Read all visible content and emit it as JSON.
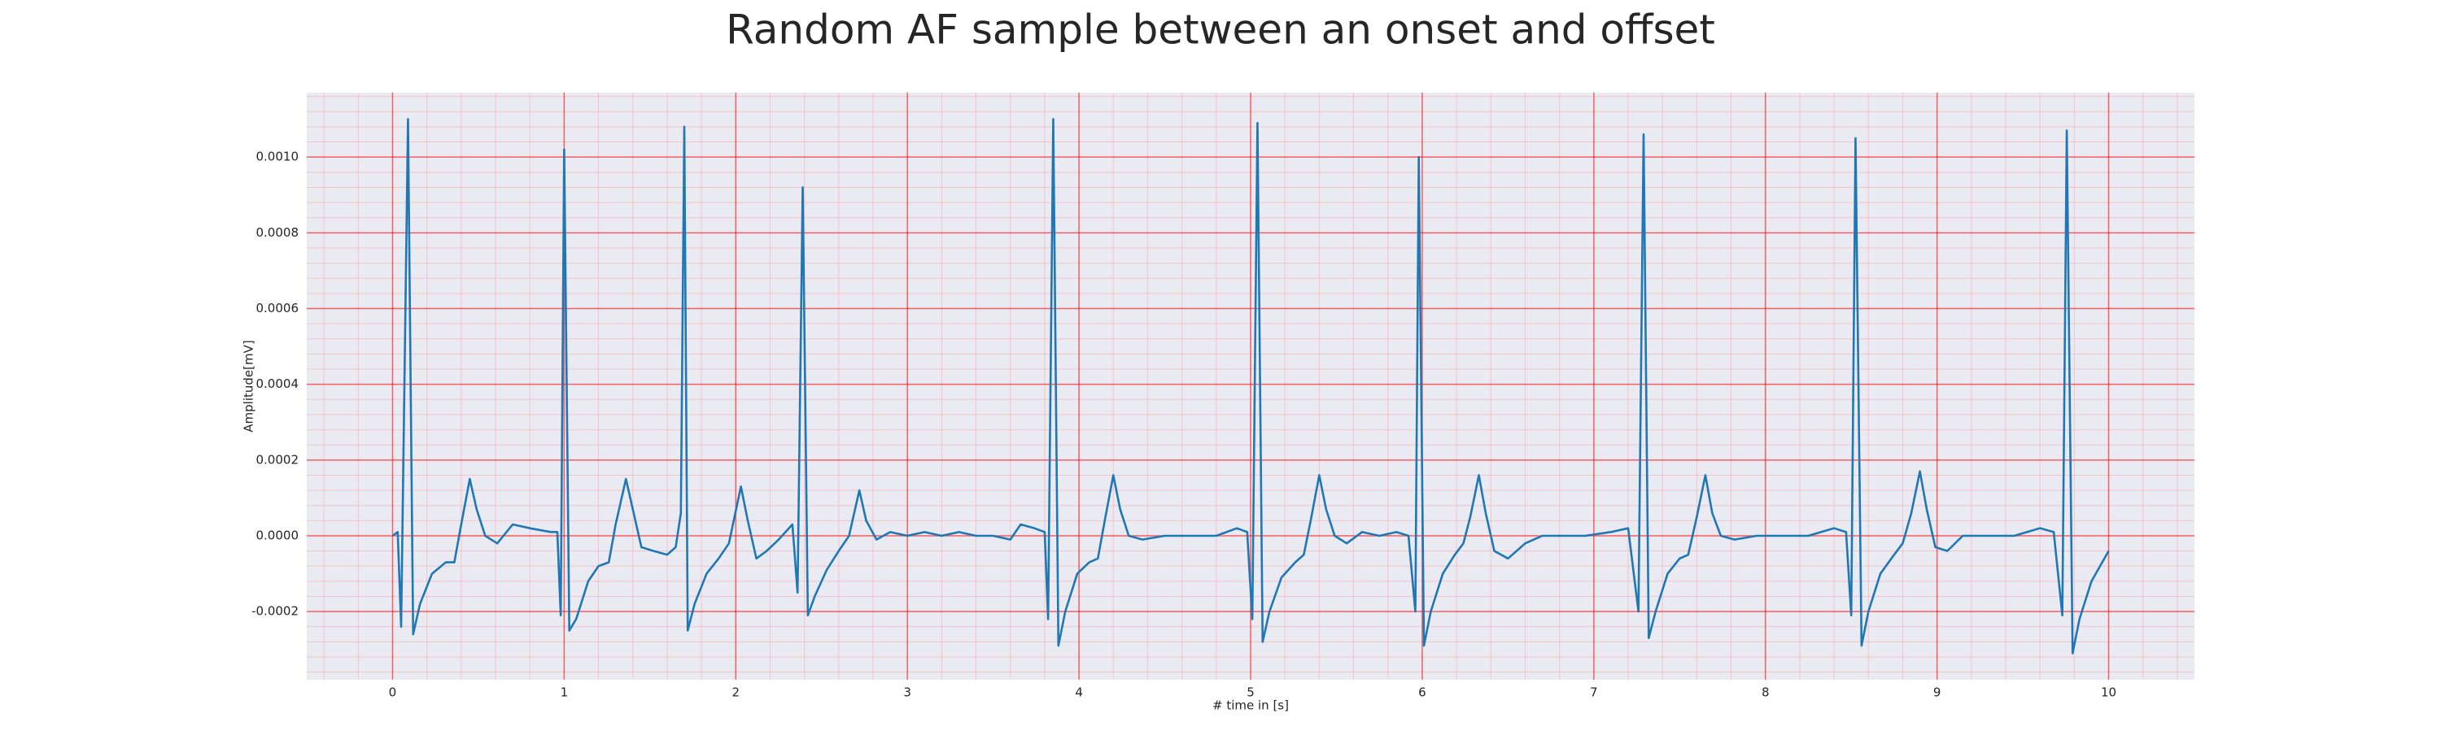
{
  "chart_data": {
    "type": "line",
    "title": "Random AF sample between an onset and offset",
    "xlabel": "# time in [s]",
    "ylabel": "Amplitude[mV]",
    "x": [
      0,
      0.03,
      0.05,
      0.09,
      0.12,
      0.16,
      0.23,
      0.31,
      0.36,
      0.4,
      0.45,
      0.49,
      0.54,
      0.61,
      0.7,
      0.8,
      0.92,
      0.96,
      0.98,
      1.0,
      1.03,
      1.07,
      1.14,
      1.2,
      1.26,
      1.3,
      1.36,
      1.4,
      1.45,
      1.52,
      1.6,
      1.65,
      1.68,
      1.7,
      1.72,
      1.76,
      1.83,
      1.9,
      1.96,
      2.03,
      2.07,
      2.12,
      2.18,
      2.25,
      2.33,
      2.36,
      2.39,
      2.42,
      2.46,
      2.53,
      2.6,
      2.66,
      2.72,
      2.76,
      2.82,
      2.9,
      3.0,
      3.1,
      3.2,
      3.3,
      3.4,
      3.5,
      3.6,
      3.66,
      3.74,
      3.8,
      3.82,
      3.85,
      3.88,
      3.92,
      3.99,
      4.06,
      4.11,
      4.15,
      4.2,
      4.24,
      4.29,
      4.37,
      4.5,
      4.65,
      4.8,
      4.92,
      4.98,
      5.01,
      5.04,
      5.07,
      5.11,
      5.18,
      5.26,
      5.31,
      5.35,
      5.4,
      5.44,
      5.49,
      5.56,
      5.65,
      5.75,
      5.85,
      5.92,
      5.96,
      5.98,
      6.01,
      6.05,
      6.12,
      6.19,
      6.24,
      6.28,
      6.33,
      6.37,
      6.42,
      6.5,
      6.6,
      6.7,
      6.8,
      6.95,
      7.1,
      7.2,
      7.26,
      7.29,
      7.32,
      7.36,
      7.43,
      7.5,
      7.55,
      7.6,
      7.65,
      7.69,
      7.74,
      7.82,
      7.95,
      8.1,
      8.25,
      8.4,
      8.47,
      8.5,
      8.525,
      8.56,
      8.6,
      8.67,
      8.75,
      8.8,
      8.85,
      8.9,
      8.94,
      8.99,
      9.06,
      9.15,
      9.3,
      9.45,
      9.6,
      9.68,
      9.73,
      9.756,
      9.79,
      9.83,
      9.9,
      10.0
    ],
    "series": [
      {
        "color": "#1f77b4",
        "values": [
          0,
          1e-05,
          -0.00024,
          0.0011,
          -0.00026,
          -0.00018,
          -0.0001,
          -7e-05,
          -7e-05,
          3e-05,
          0.00015,
          7e-05,
          0.0,
          -2e-05,
          3e-05,
          2e-05,
          1e-05,
          1e-05,
          -0.00021,
          0.00102,
          -0.00025,
          -0.00022,
          -0.00012,
          -8e-05,
          -7e-05,
          3e-05,
          0.00015,
          7e-05,
          -3e-05,
          -4e-05,
          -5e-05,
          -3e-05,
          6e-05,
          0.00108,
          -0.00025,
          -0.00018,
          -0.0001,
          -6e-05,
          -2e-05,
          0.00013,
          4e-05,
          -6e-05,
          -4e-05,
          -1e-05,
          3e-05,
          -0.00015,
          0.00092,
          -0.00021,
          -0.00016,
          -9e-05,
          -4e-05,
          0.0,
          0.00012,
          4e-05,
          -1e-05,
          1e-05,
          0.0,
          1e-05,
          0.0,
          1e-05,
          0.0,
          0.0,
          -1e-05,
          3e-05,
          2e-05,
          1e-05,
          -0.00022,
          0.0011,
          -0.00029,
          -0.0002,
          -0.0001,
          -7e-05,
          -6e-05,
          4e-05,
          0.00016,
          7e-05,
          0.0,
          -1e-05,
          0.0,
          0.0,
          0.0,
          2e-05,
          1e-05,
          -0.00022,
          0.00109,
          -0.00028,
          -0.0002,
          -0.00011,
          -7e-05,
          -5e-05,
          4e-05,
          0.00016,
          7e-05,
          0.0,
          -2e-05,
          1e-05,
          0.0,
          1e-05,
          0.0,
          -0.0002,
          0.001,
          -0.00029,
          -0.0002,
          -0.0001,
          -5e-05,
          -2e-05,
          5e-05,
          0.00016,
          6e-05,
          -4e-05,
          -6e-05,
          -2e-05,
          0.0,
          0.0,
          0.0,
          1e-05,
          2e-05,
          -0.0002,
          0.00106,
          -0.00027,
          -0.0002,
          -0.0001,
          -6e-05,
          -5e-05,
          5e-05,
          0.00016,
          6e-05,
          0.0,
          -1e-05,
          0.0,
          0.0,
          0.0,
          2e-05,
          1e-05,
          -0.00021,
          0.00105,
          -0.00029,
          -0.0002,
          -0.0001,
          -5e-05,
          -2e-05,
          6e-05,
          0.00017,
          7e-05,
          -3e-05,
          -4e-05,
          0.0,
          0.0,
          0.0,
          2e-05,
          1e-05,
          -0.00021,
          0.00107,
          -0.00031,
          -0.00022,
          -0.00012,
          -4e-05
        ]
      }
    ],
    "xlim": [
      -0.5,
      10.5
    ],
    "xticks": [
      0,
      1,
      2,
      3,
      4,
      5,
      6,
      7,
      8,
      9,
      10
    ],
    "ylim": [
      -0.00038,
      0.00117
    ],
    "yticks": [
      -0.0002,
      {
        "value": 0,
        "label": "0.0000"
      },
      0.0002,
      0.0004,
      0.0006,
      0.0008,
      {
        "value": 0.001,
        "label": "0.0010"
      }
    ],
    "grid": true,
    "minor_grid": true
  }
}
